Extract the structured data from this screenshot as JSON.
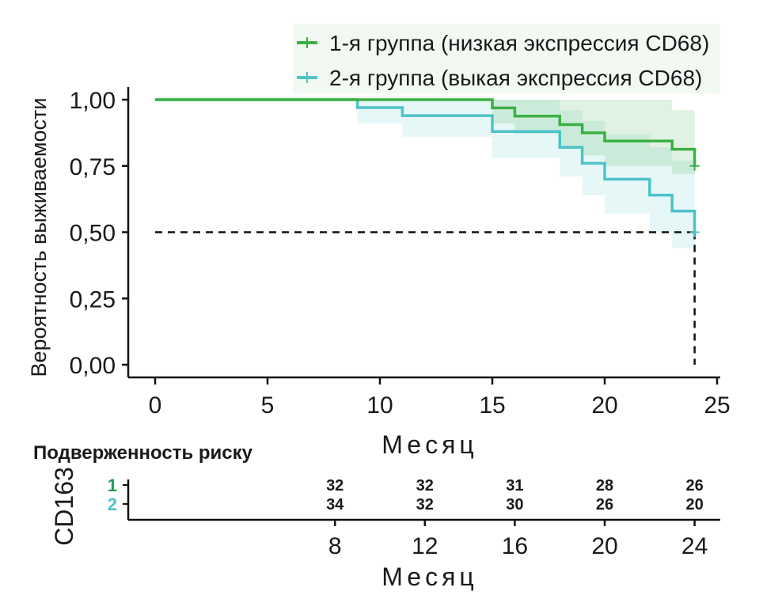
{
  "chart_data": [
    {
      "type": "line",
      "subtype": "kaplan-meier",
      "title": "",
      "xlabel": "Месяц",
      "ylabel": "Вероятность выживаемости",
      "xlim": [
        0,
        25
      ],
      "ylim": [
        0,
        1
      ],
      "x_ticks": [
        "0",
        "5",
        "10",
        "15",
        "20",
        "25"
      ],
      "x_tick_values": [
        0,
        5,
        10,
        15,
        20,
        25
      ],
      "y_ticks": [
        "0,00",
        "0,25",
        "0,50",
        "0,75",
        "1,00"
      ],
      "y_tick_values": [
        0,
        0.25,
        0.5,
        0.75,
        1.0
      ],
      "grid": false,
      "legend_position": "top-right",
      "median_line": {
        "y": 0.5,
        "x_end": 24
      },
      "series": [
        {
          "name": "1-я группа (низкая экспрессия CD68)",
          "color": "#3cb043",
          "x": [
            0,
            15,
            16,
            18,
            19,
            20,
            23,
            24
          ],
          "y": [
            1.0,
            0.969,
            0.938,
            0.906,
            0.875,
            0.844,
            0.813,
            0.75
          ],
          "ci_upper": [
            1.0,
            1.0,
            1.0,
            1.0,
            1.0,
            1.0,
            0.96,
            0.93
          ],
          "ci_lower": [
            1.0,
            0.91,
            0.87,
            0.82,
            0.79,
            0.75,
            0.72,
            0.69
          ],
          "censor_x": [
            24
          ],
          "censor_y": [
            0.75
          ]
        },
        {
          "name": "2-я группа (выкая экспрессия CD68)",
          "color": "#4dc3c8",
          "x": [
            0,
            9,
            11,
            15,
            18,
            19,
            20,
            22,
            23,
            24
          ],
          "y": [
            1.0,
            0.97,
            0.94,
            0.88,
            0.82,
            0.76,
            0.7,
            0.64,
            0.58,
            0.5
          ],
          "ci_upper": [
            1.0,
            1.0,
            1.0,
            1.0,
            0.96,
            0.92,
            0.87,
            0.82,
            0.77,
            0.7
          ],
          "ci_lower": [
            1.0,
            0.91,
            0.86,
            0.78,
            0.71,
            0.64,
            0.57,
            0.5,
            0.44,
            0.44
          ],
          "censor_x": [
            24
          ],
          "censor_y": [
            0.5
          ]
        }
      ]
    },
    {
      "type": "table",
      "title": "Подверженность риску",
      "row_label": "CD163",
      "xlabel": "Месяц",
      "x_ticks": [
        "8",
        "12",
        "16",
        "20",
        "24"
      ],
      "x_tick_values": [
        8,
        12,
        16,
        20,
        24
      ],
      "xlim": [
        0,
        25
      ],
      "rows": [
        {
          "name": "1",
          "color": "#1f9e5a",
          "values": [
            "32",
            "32",
            "31",
            "28",
            "26"
          ]
        },
        {
          "name": "2",
          "color": "#4dc3c8",
          "values": [
            "34",
            "32",
            "30",
            "26",
            "20"
          ]
        }
      ]
    }
  ]
}
